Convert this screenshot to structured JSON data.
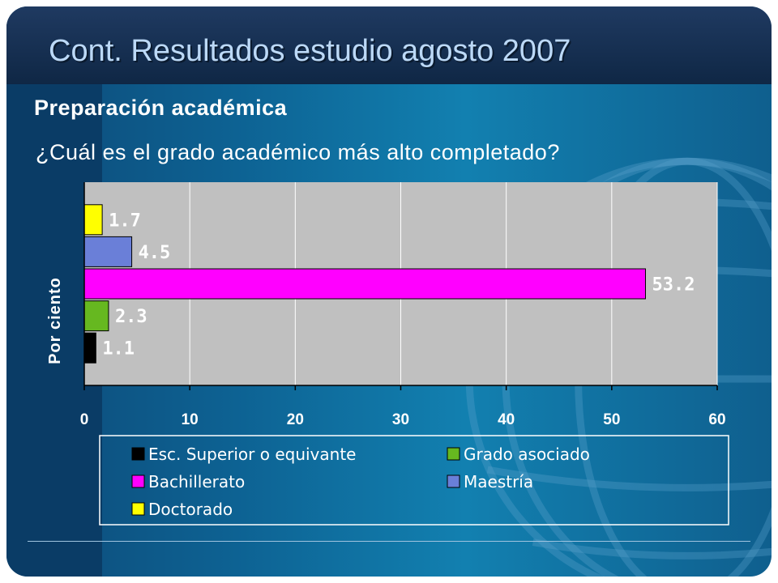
{
  "slide": {
    "title": "Cont. Resultados estudio agosto 2007",
    "section_heading": "Preparación académica",
    "question": "¿Cuál es el grado académico más alto completado?"
  },
  "colors": {
    "plot_background": "#c0c0c0",
    "grid": "#ffffff"
  },
  "chart_data": {
    "type": "bar",
    "orientation": "horizontal",
    "ylabel": "Por ciento",
    "xlabel": "",
    "xlim": [
      0,
      60
    ],
    "x_ticks": [
      0,
      10,
      20,
      30,
      40,
      50,
      60
    ],
    "grid": true,
    "legend_position": "bottom",
    "series": [
      {
        "name": "Doctorado",
        "value": 1.7,
        "label": "1.7",
        "color": "#ffff00"
      },
      {
        "name": "Maestría",
        "value": 4.5,
        "label": "4.5",
        "color": "#6a7fd8"
      },
      {
        "name": "Bachillerato",
        "value": 53.2,
        "label": "53.2",
        "color": "#ff00ff"
      },
      {
        "name": "Grado asociado",
        "value": 2.3,
        "label": "2.3",
        "color": "#66b820"
      },
      {
        "name": "Esc. Superior o equivante",
        "value": 1.1,
        "label": "1.1",
        "color": "#000000"
      }
    ],
    "legend": [
      {
        "name": "Esc. Superior o equivante",
        "color": "#000000"
      },
      {
        "name": "Grado asociado",
        "color": "#66b820"
      },
      {
        "name": "Bachillerato",
        "color": "#ff00ff"
      },
      {
        "name": "Maestría",
        "color": "#6a7fd8"
      },
      {
        "name": "Doctorado",
        "color": "#ffff00"
      }
    ]
  }
}
